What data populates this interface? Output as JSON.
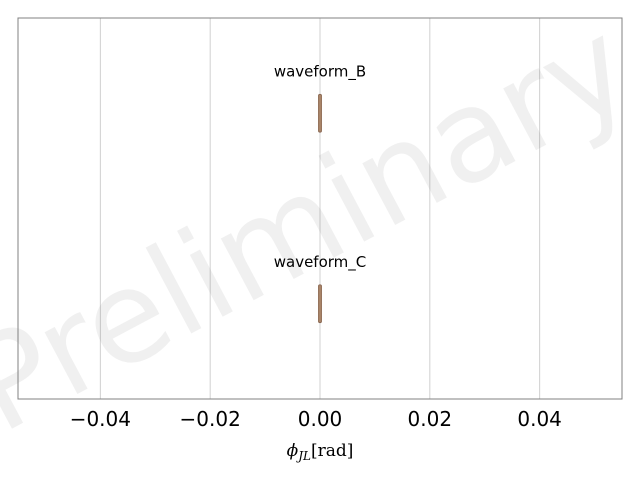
{
  "chart_data": {
    "type": "violin",
    "xlabel": "ϕ_JL [rad]",
    "xlim": [
      -0.055,
      0.055
    ],
    "xticks": [
      -0.04,
      -0.02,
      0.0,
      0.02,
      0.04
    ],
    "xtick_labels": [
      "−0.04",
      "−0.02",
      "0.00",
      "0.02",
      "0.04"
    ],
    "grid": "vertical",
    "watermark": "Preliminary",
    "series": [
      {
        "name": "waveform_B",
        "center": 0.0,
        "min": 0.0,
        "max": 0.0,
        "color": "#c8a07e"
      },
      {
        "name": "waveform_C",
        "center": 0.0,
        "min": 0.0,
        "max": 0.0,
        "color": "#c8a07e"
      }
    ]
  }
}
